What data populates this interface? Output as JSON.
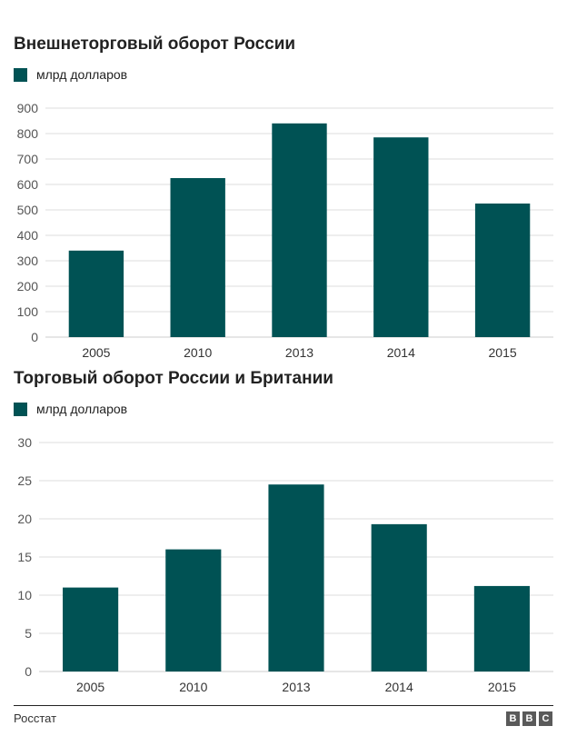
{
  "colors": {
    "bar": "#005254",
    "grid": "#dddddd",
    "axis_text": "#555555"
  },
  "charts": [
    {
      "title": "Внешнеторговый оборот России",
      "legend_label": "млрд долларов"
    },
    {
      "title": "Торговый оборот России и Британии",
      "legend_label": "млрд долларов"
    }
  ],
  "chart_data": [
    {
      "type": "bar",
      "title": "Внешнеторговый оборот России",
      "categories": [
        "2005",
        "2010",
        "2013",
        "2014",
        "2015"
      ],
      "series": [
        {
          "name": "млрд долларов",
          "values": [
            340,
            625,
            840,
            785,
            525
          ]
        }
      ],
      "ylim": [
        0,
        900
      ],
      "yticks": [
        0,
        100,
        200,
        300,
        400,
        500,
        600,
        700,
        800,
        900
      ],
      "grid": true,
      "legend_position": "top-left"
    },
    {
      "type": "bar",
      "title": "Торговый оборот России и Британии",
      "categories": [
        "2005",
        "2010",
        "2013",
        "2014",
        "2015"
      ],
      "series": [
        {
          "name": "млрд долларов",
          "values": [
            11,
            16,
            24.5,
            19.3,
            11.2
          ]
        }
      ],
      "ylim": [
        0,
        30
      ],
      "yticks": [
        0,
        5,
        10,
        15,
        20,
        25,
        30
      ],
      "grid": true,
      "legend_position": "top-left"
    }
  ],
  "footer": {
    "source": "Росстат",
    "logo_letters": [
      "B",
      "B",
      "C"
    ]
  }
}
